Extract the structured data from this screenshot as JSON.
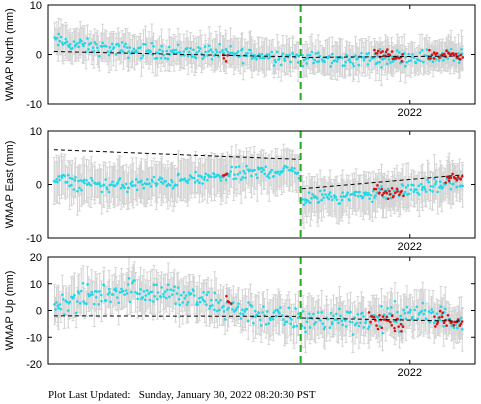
{
  "footer": {
    "prefix": "Plot Last Updated:",
    "timestamp": "Sunday, January 30, 2022 08:20:30 PST"
  },
  "colors": {
    "main_series": "#22d8e8",
    "recent_series": "#dd1111",
    "error_bar": "#d4d4d4",
    "trend": "#000000",
    "event_marker": "#22aa22"
  },
  "chart_data": [
    {
      "type": "scatter",
      "ylabel": "WMAP North (mm)",
      "xlim": [
        2018.95,
        2022.55
      ],
      "ylim": [
        -10,
        10
      ],
      "yticks": [
        -10,
        0,
        10
      ],
      "xticks": [
        {
          "value": 2022.0,
          "label": "2022"
        }
      ],
      "event_marker_x": 2021.08,
      "grid": false,
      "trend": {
        "segments": [
          [
            [
              2019.0,
              0.6
            ],
            [
              2021.07,
              -0.5
            ]
          ],
          [
            [
              2021.09,
              -0.6
            ],
            [
              2022.45,
              -0.3
            ]
          ]
        ]
      },
      "series": [
        {
          "role": "main",
          "color": "#22d8e8",
          "error": 3.0,
          "segments": [
            {
              "x": [
                2019.0,
                2019.3,
                2019.6,
                2020.0,
                2020.4,
                2020.8,
                2021.07
              ],
              "y": [
                2.8,
                1.5,
                0.9,
                0.6,
                0.3,
                -0.3,
                -0.5
              ]
            },
            {
              "x": [
                2021.09,
                2021.4,
                2021.7,
                2022.0,
                2022.45
              ],
              "y": [
                -0.8,
                -1.2,
                -0.7,
                -0.5,
                -0.3
              ]
            }
          ],
          "noise": 1.3
        },
        {
          "role": "recent",
          "color": "#dd1111",
          "error": 2.0,
          "segments": [
            {
              "x": [
                2020.42,
                2020.47
              ],
              "y": [
                -0.5,
                -1.5
              ]
            },
            {
              "x": [
                2021.7,
                2021.95
              ],
              "y": [
                0.2,
                -0.6
              ]
            },
            {
              "x": [
                2022.15,
                2022.45
              ],
              "y": [
                -0.2,
                0.2
              ]
            }
          ],
          "noise": 0.9
        }
      ]
    },
    {
      "type": "scatter",
      "ylabel": "WMAP East (mm)",
      "xlim": [
        2018.95,
        2022.55
      ],
      "ylim": [
        -10,
        10
      ],
      "yticks": [
        -10,
        0,
        10
      ],
      "xticks": [
        {
          "value": 2022.0,
          "label": "2022"
        }
      ],
      "event_marker_x": 2021.08,
      "grid": false,
      "trend": {
        "segments": [
          [
            [
              2019.0,
              6.5
            ],
            [
              2021.07,
              4.7
            ]
          ],
          [
            [
              2021.09,
              -0.8
            ],
            [
              2022.45,
              1.8
            ]
          ]
        ]
      },
      "series": [
        {
          "role": "main",
          "color": "#22d8e8",
          "error": 3.5,
          "segments": [
            {
              "x": [
                2019.0,
                2019.3,
                2019.6,
                2020.0,
                2020.4,
                2020.8,
                2021.07
              ],
              "y": [
                1.0,
                0.0,
                -0.2,
                0.5,
                1.5,
                2.5,
                2.5
              ]
            },
            {
              "x": [
                2021.09,
                2021.4,
                2021.7,
                2022.0,
                2022.45
              ],
              "y": [
                -2.8,
                -2.2,
                -1.8,
                -1.0,
                0.5
              ]
            }
          ],
          "noise": 1.1
        },
        {
          "role": "recent",
          "color": "#dd1111",
          "error": 2.0,
          "segments": [
            {
              "x": [
                2020.42,
                2020.47
              ],
              "y": [
                2.5,
                2.0
              ]
            },
            {
              "x": [
                2021.7,
                2021.95
              ],
              "y": [
                -1.2,
                -1.8
              ]
            },
            {
              "x": [
                2022.3,
                2022.45
              ],
              "y": [
                0.8,
                1.5
              ]
            }
          ],
          "noise": 0.8
        }
      ]
    },
    {
      "type": "scatter",
      "ylabel": "WMAP Up (mm)",
      "xlim": [
        2018.95,
        2022.55
      ],
      "ylim": [
        -20,
        20
      ],
      "yticks": [
        -20,
        -10,
        0,
        10,
        20
      ],
      "xticks": [
        {
          "value": 2022.0,
          "label": "2022"
        }
      ],
      "event_marker_x": 2021.08,
      "grid": false,
      "trend": {
        "segments": [
          [
            [
              2019.0,
              -2.0
            ],
            [
              2021.07,
              -2.2
            ]
          ],
          [
            [
              2021.09,
              -2.8
            ],
            [
              2022.45,
              -4.0
            ]
          ]
        ]
      },
      "series": [
        {
          "role": "main",
          "color": "#22d8e8",
          "error": 6.5,
          "segments": [
            {
              "x": [
                2019.0,
                2019.3,
                2019.6,
                2020.0,
                2020.4,
                2020.8,
                2021.07
              ],
              "y": [
                2.0,
                5.0,
                8.0,
                6.0,
                2.0,
                -2.0,
                -4.0
              ]
            },
            {
              "x": [
                2021.09,
                2021.4,
                2021.7,
                2022.0,
                2022.45
              ],
              "y": [
                -4.0,
                -3.0,
                -3.5,
                -1.0,
                -4.0
              ]
            }
          ],
          "noise": 4.0
        },
        {
          "role": "recent",
          "color": "#dd1111",
          "error": 4.0,
          "segments": [
            {
              "x": [
                2020.45,
                2020.5
              ],
              "y": [
                5.0,
                2.0
              ]
            },
            {
              "x": [
                2021.65,
                2021.95
              ],
              "y": [
                -3.0,
                -5.0
              ]
            },
            {
              "x": [
                2022.2,
                2022.45
              ],
              "y": [
                -3.0,
                -5.0
              ]
            }
          ],
          "noise": 2.5
        }
      ]
    }
  ]
}
